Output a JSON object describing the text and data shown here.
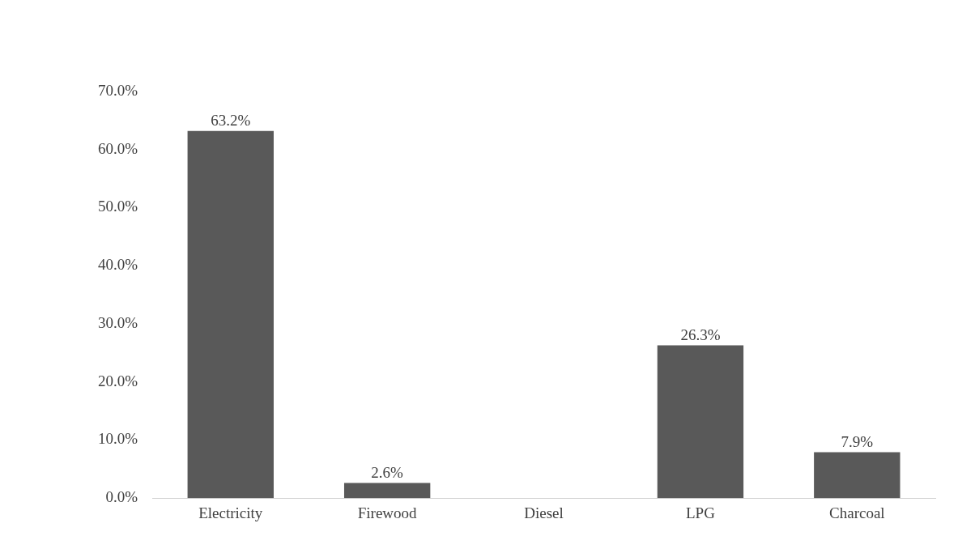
{
  "chart_data": {
    "type": "bar",
    "categories": [
      "Electricity",
      "Firewood",
      "Diesel",
      "LPG",
      "Charcoal"
    ],
    "values": [
      63.2,
      2.6,
      0,
      26.3,
      7.9
    ],
    "value_labels": [
      "63.2%",
      "2.6%",
      null,
      "26.3%",
      "7.9%"
    ],
    "color": "#595959",
    "ylim": [
      0,
      70
    ],
    "yticks": [
      {
        "value": 0,
        "label": "0.0%"
      },
      {
        "value": 10,
        "label": "10.0%"
      },
      {
        "value": 20,
        "label": "20.0%"
      },
      {
        "value": 30,
        "label": "30.0%"
      },
      {
        "value": 40,
        "label": "40.0%"
      },
      {
        "value": 50,
        "label": "50.0%"
      },
      {
        "value": 60,
        "label": "60.0%"
      },
      {
        "value": 70,
        "label": "70.0%"
      }
    ],
    "grid": false,
    "legend": false
  }
}
